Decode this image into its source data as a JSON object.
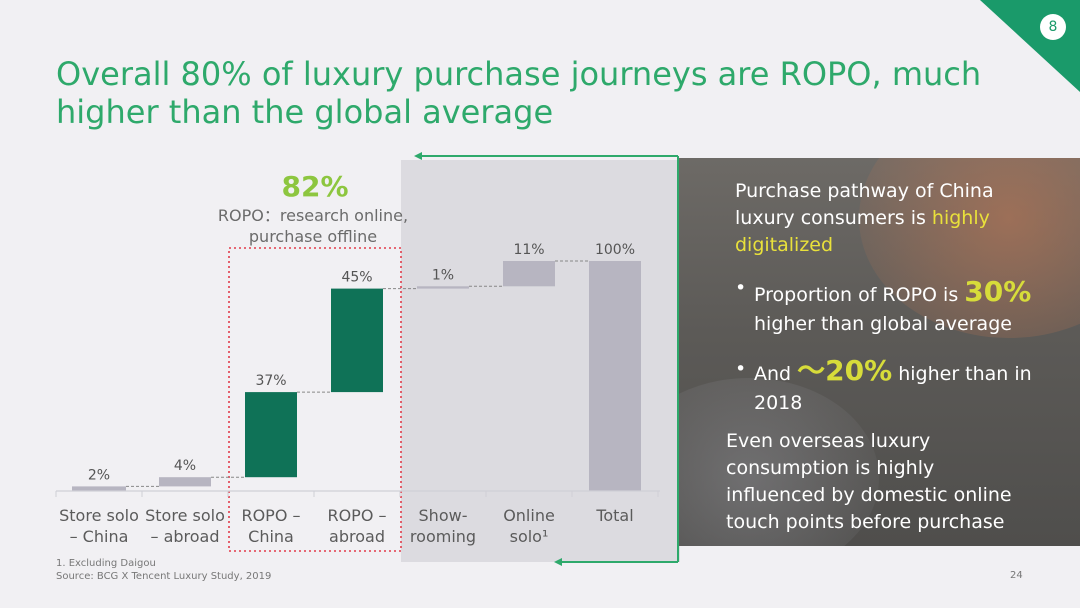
{
  "header": {
    "title_line1": "Overall 80% of luxury purchase journeys are ROPO, much",
    "title_line2": "higher than the global average",
    "page_badge": "8"
  },
  "ropo_callout": {
    "percent": "82%",
    "desc_line1": "ROPO：research online,",
    "desc_line2": "purchase offline"
  },
  "panel": {
    "heading_line1": "Purchase pathway of China",
    "heading_line2_pre": "luxury consumers is ",
    "heading_line2_hl": "highly",
    "heading_line3_hl": "digitalized",
    "bullet1_pre": "Proportion of ROPO is ",
    "bullet1_big": "30%",
    "bullet1_line2": "higher than global average",
    "bullet2_pre": "And ",
    "bullet2_big": "～20%",
    "bullet2_post": " higher than in",
    "bullet2_line2": "2018",
    "closing_line1": "Even overseas luxury",
    "closing_line2": "consumption is highly",
    "closing_line3": "influenced by domestic online",
    "closing_line4": "touch points before purchase",
    "bullet_glyph": "•"
  },
  "footer": {
    "note": "1. Excluding Daigou",
    "source": "Source: BCG X Tencent Luxury Study, 2019",
    "page_number": "24"
  },
  "colors": {
    "accent_green": "#2ea96b",
    "bar_green": "#0f7257",
    "bar_grey": "#b7b5c1",
    "highlight_yellow": "#e9e13b",
    "ropo_green": "#8dc63f",
    "dotted_red": "#e23b4a"
  },
  "chart_data": {
    "type": "bar",
    "subtype": "waterfall",
    "categories": [
      [
        "Store solo",
        "– China"
      ],
      [
        "Store solo",
        "– abroad"
      ],
      [
        "ROPO –",
        "China"
      ],
      [
        "ROPO –",
        "abroad"
      ],
      [
        "Show-",
        "rooming"
      ],
      [
        "Online",
        "solo¹"
      ],
      [
        "Total",
        ""
      ]
    ],
    "values": [
      2,
      4,
      37,
      45,
      1,
      11,
      100
    ],
    "value_labels": [
      "2%",
      "4%",
      "37%",
      "45%",
      "1%",
      "11%",
      "100%"
    ],
    "bar_kinds": [
      "grey",
      "grey",
      "green",
      "green",
      "grey",
      "grey",
      "grey-total"
    ],
    "ylim": [
      0,
      100
    ],
    "grid": false,
    "legend": "none"
  }
}
